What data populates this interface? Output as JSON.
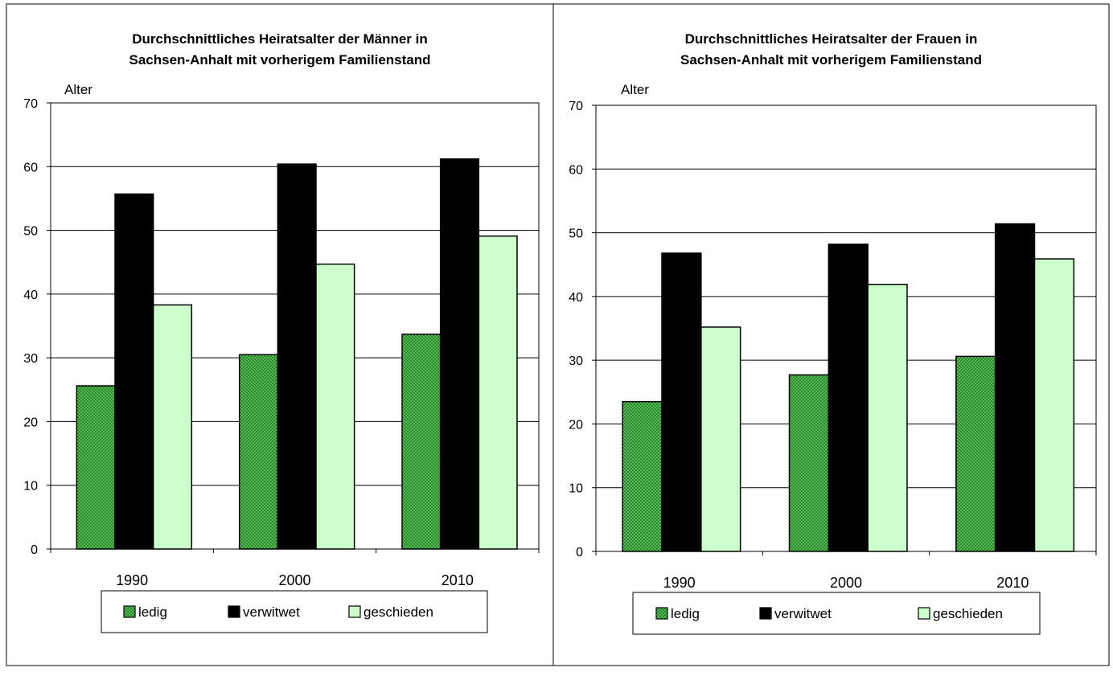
{
  "chart_data": [
    {
      "type": "bar",
      "title_lines": [
        "Durchschnittliches Heiratsalter der Männer in",
        "Sachsen-Anhalt  mit vorherigem Familienstand"
      ],
      "ylabel": "Alter",
      "xlabel": "",
      "ylim": [
        0,
        70
      ],
      "yticks": [
        0,
        10,
        20,
        30,
        40,
        50,
        60,
        70
      ],
      "grid": true,
      "legend_position": "bottom",
      "categories": [
        "1990",
        "2000",
        "2010"
      ],
      "series": [
        {
          "name": "ledig",
          "values": [
            25.6,
            30.5,
            33.7
          ]
        },
        {
          "name": "verwitwet",
          "values": [
            55.7,
            60.4,
            61.2
          ]
        },
        {
          "name": "geschieden",
          "values": [
            38.3,
            44.7,
            49.1
          ]
        }
      ]
    },
    {
      "type": "bar",
      "title_lines": [
        "Durchschnittliches Heiratsalter der Frauen in",
        "Sachsen-Anhalt mit vorherigem Familienstand"
      ],
      "ylabel": "Alter",
      "xlabel": "",
      "ylim": [
        0,
        70
      ],
      "yticks": [
        0,
        10,
        20,
        30,
        40,
        50,
        60,
        70
      ],
      "grid": true,
      "legend_position": "bottom",
      "categories": [
        "1990",
        "2000",
        "2010"
      ],
      "series": [
        {
          "name": "ledig",
          "values": [
            23.5,
            27.7,
            30.6
          ]
        },
        {
          "name": "verwitwet",
          "values": [
            46.8,
            48.2,
            51.4
          ]
        },
        {
          "name": "geschieden",
          "values": [
            35.2,
            41.9,
            45.9
          ]
        }
      ]
    }
  ],
  "series_colors": {
    "ledig": "#1e8c1e",
    "verwitwet": "#000000",
    "geschieden": "#ccffcc"
  }
}
